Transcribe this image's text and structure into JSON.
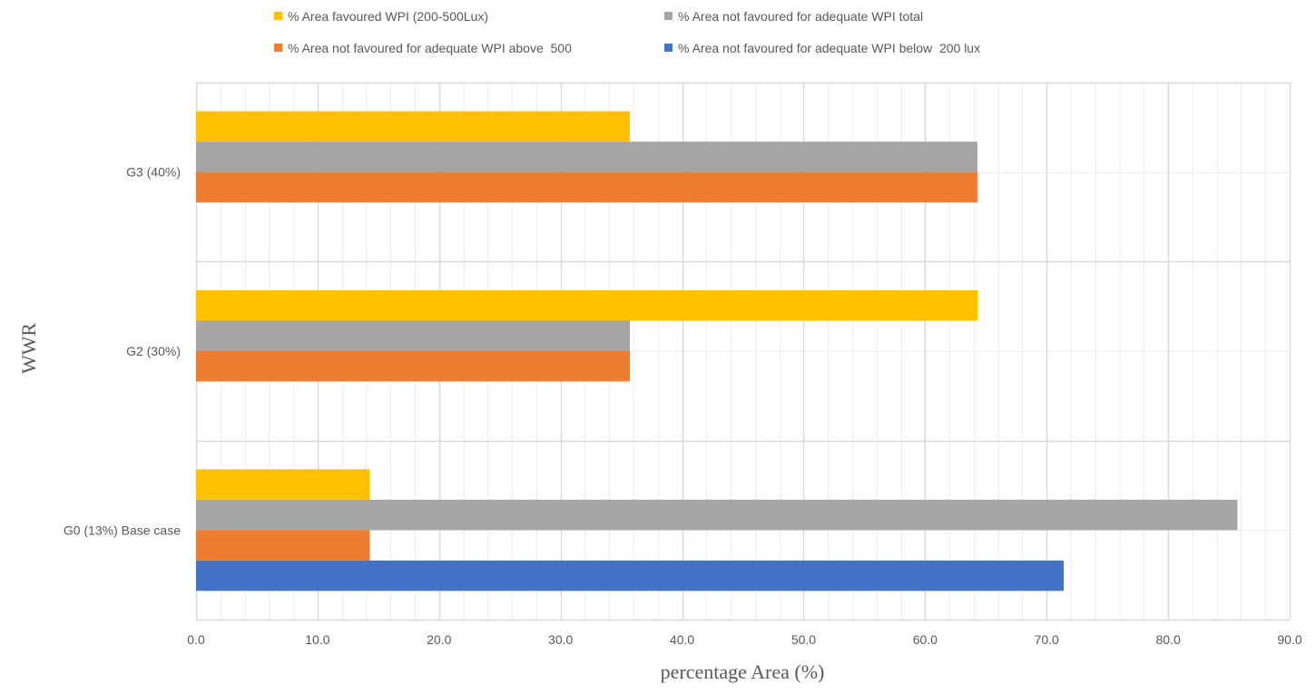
{
  "chart_data": {
    "type": "bar",
    "orientation": "horizontal",
    "title": "",
    "xlabel": "percentage Area (%)",
    "ylabel": "WWR",
    "xlim": [
      0,
      90
    ],
    "x_major_step": 10,
    "x_minor_step": 2,
    "x_tick_labels": [
      "0.0",
      "10.0",
      "20.0",
      "30.0",
      "40.0",
      "50.0",
      "60.0",
      "70.0",
      "80.0",
      "90.0"
    ],
    "grid": true,
    "legend_position": "top",
    "categories": [
      "G3 (40%)",
      "G2 (30%)",
      "G0 (13%) Base case"
    ],
    "series": [
      {
        "name": "% Area favoured WPI (200-500Lux)",
        "color": "#FFC000",
        "values": [
          35.7,
          64.3,
          14.3
        ]
      },
      {
        "name": "% Area not favoured for adequate WPI total",
        "color": "#A5A5A5",
        "values": [
          64.3,
          35.7,
          85.7
        ]
      },
      {
        "name": "% Area not favoured for adequate WPI above  500",
        "color": "#ED7D31",
        "values": [
          64.3,
          35.7,
          14.3
        ]
      },
      {
        "name": "% Area not favoured for adequate WPI below  200 lux",
        "color": "#4472C4",
        "values": [
          null,
          null,
          71.4
        ]
      }
    ]
  }
}
